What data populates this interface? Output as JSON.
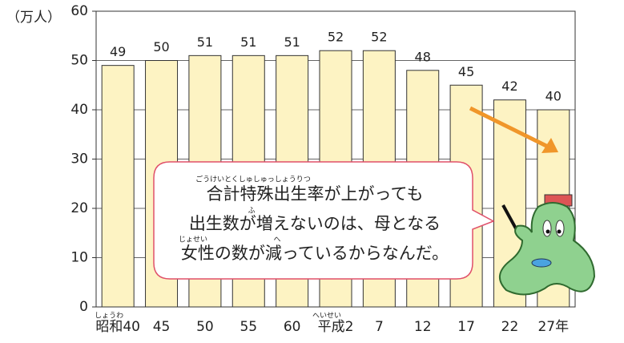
{
  "chart_data": {
    "type": "bar",
    "y_unit": "（万人）",
    "categories": [
      "昭和40",
      "45",
      "50",
      "55",
      "60",
      "平成2",
      "7",
      "12",
      "17",
      "22",
      "27年"
    ],
    "category_furigana": [
      "しょうわ",
      "へいせい"
    ],
    "values": [
      49,
      50,
      51,
      51,
      51,
      52,
      52,
      48,
      45,
      42,
      40
    ],
    "color": "#fdf3c3",
    "ylim": [
      0,
      60
    ],
    "yticks": [
      0,
      10,
      20,
      30,
      40,
      50,
      60
    ],
    "grid": true,
    "speech_bubble": {
      "lines": [
        "合計特殊出生率が上がっても",
        "出生数が増えないのは、母となる",
        "女性の数が減っているからなんだ。"
      ],
      "furigana": [
        "ごうけいとくしゅしゅっしょうりつ",
        "ふ",
        "じょせい",
        "へ"
      ]
    }
  }
}
